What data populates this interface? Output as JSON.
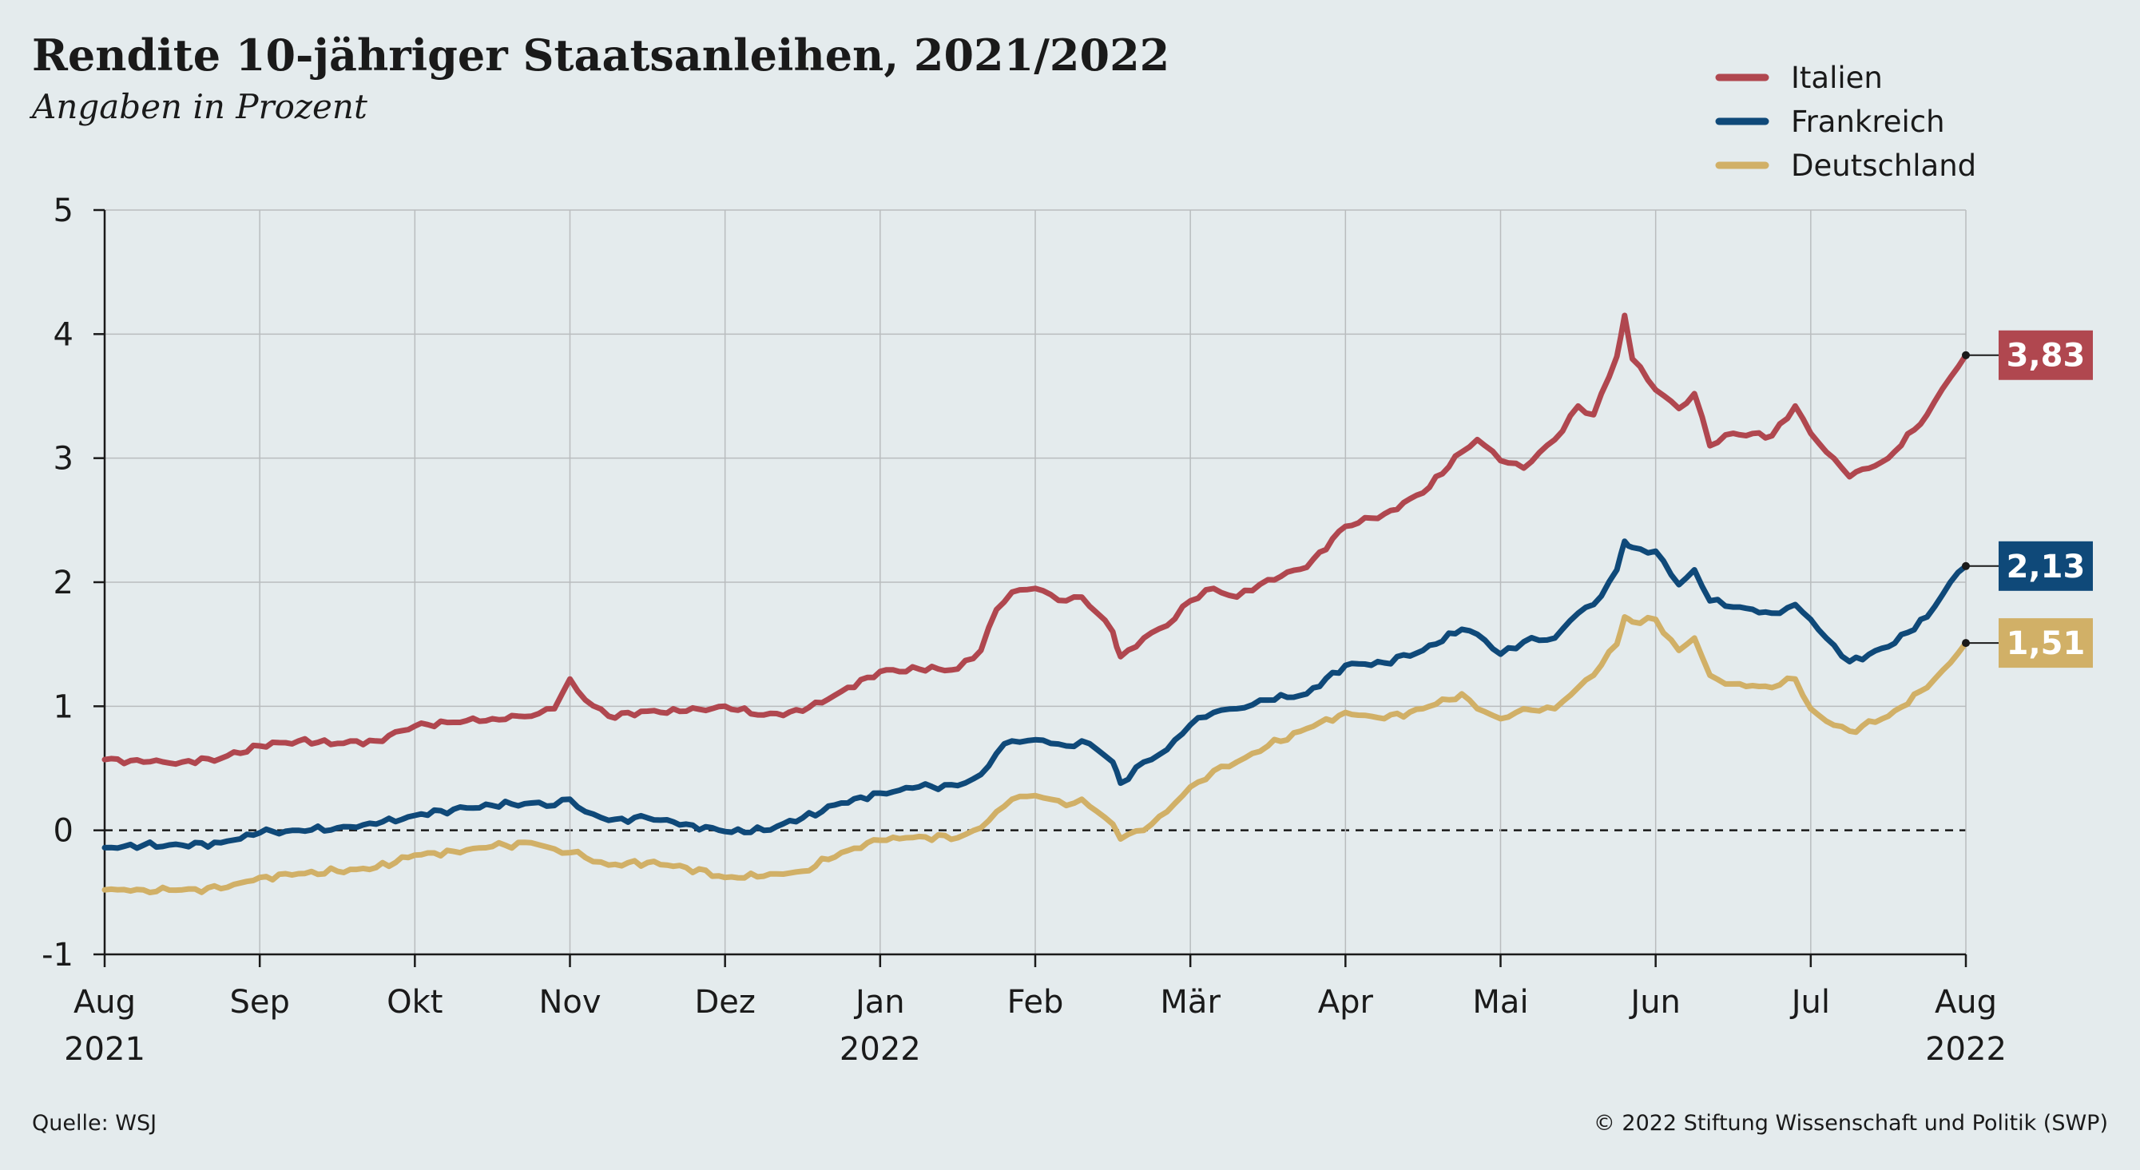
{
  "chart_data": {
    "type": "line",
    "title": "Rendite 10-jähriger Staatsanleihen, 2021/2022",
    "subtitle": "Angaben in Prozent",
    "source": "Quelle: WSJ",
    "copyright": "© 2022 Stiftung Wissenschaft und Politik (SWP)",
    "ylim": [
      -1,
      5
    ],
    "y_ticks": [
      "5",
      "4",
      "3",
      "2",
      "1",
      "0",
      "-1"
    ],
    "y_tick_values": [
      5,
      4,
      3,
      2,
      1,
      0,
      -1
    ],
    "x_ticks": [
      {
        "label": "Aug",
        "year": "2021",
        "month": 0
      },
      {
        "label": "Sep",
        "year": "",
        "month": 1
      },
      {
        "label": "Okt",
        "year": "",
        "month": 2
      },
      {
        "label": "Nov",
        "year": "",
        "month": 3
      },
      {
        "label": "Dez",
        "year": "",
        "month": 4
      },
      {
        "label": "Jan",
        "year": "2022",
        "month": 5
      },
      {
        "label": "Feb",
        "year": "",
        "month": 6
      },
      {
        "label": "Mär",
        "year": "",
        "month": 7
      },
      {
        "label": "Apr",
        "year": "",
        "month": 8
      },
      {
        "label": "Mai",
        "year": "",
        "month": 9
      },
      {
        "label": "Jun",
        "year": "",
        "month": 10
      },
      {
        "label": "Jul",
        "year": "",
        "month": 11
      },
      {
        "label": "Aug",
        "year": "2022",
        "month": 12
      }
    ],
    "x_unit": "months since Aug 2021",
    "grid": true,
    "zero_line": "dashed",
    "legend_position": "top-right",
    "series": [
      {
        "name": "Italien",
        "color": "#b0474f",
        "end_label": "3,83",
        "points": [
          [
            0,
            0.57
          ],
          [
            0.25,
            0.55
          ],
          [
            0.5,
            0.55
          ],
          [
            0.75,
            0.58
          ],
          [
            1.0,
            0.68
          ],
          [
            1.25,
            0.72
          ],
          [
            1.5,
            0.7
          ],
          [
            1.75,
            0.72
          ],
          [
            2.0,
            0.84
          ],
          [
            2.25,
            0.87
          ],
          [
            2.5,
            0.9
          ],
          [
            2.75,
            0.92
          ],
          [
            2.9,
            0.98
          ],
          [
            3.0,
            1.22
          ],
          [
            3.1,
            1.05
          ],
          [
            3.25,
            0.92
          ],
          [
            3.5,
            0.96
          ],
          [
            3.75,
            0.96
          ],
          [
            4.0,
            1.0
          ],
          [
            4.25,
            0.93
          ],
          [
            4.5,
            0.96
          ],
          [
            4.75,
            1.12
          ],
          [
            5.0,
            1.28
          ],
          [
            5.25,
            1.3
          ],
          [
            5.5,
            1.3
          ],
          [
            5.65,
            1.45
          ],
          [
            5.75,
            1.78
          ],
          [
            5.85,
            1.92
          ],
          [
            6.0,
            1.95
          ],
          [
            6.1,
            1.9
          ],
          [
            6.2,
            1.85
          ],
          [
            6.3,
            1.88
          ],
          [
            6.4,
            1.75
          ],
          [
            6.5,
            1.6
          ],
          [
            6.55,
            1.4
          ],
          [
            6.7,
            1.55
          ],
          [
            6.85,
            1.65
          ],
          [
            7.0,
            1.85
          ],
          [
            7.15,
            1.95
          ],
          [
            7.3,
            1.88
          ],
          [
            7.5,
            2.02
          ],
          [
            7.75,
            2.12
          ],
          [
            8.0,
            2.45
          ],
          [
            8.25,
            2.55
          ],
          [
            8.5,
            2.72
          ],
          [
            8.75,
            3.05
          ],
          [
            8.85,
            3.15
          ],
          [
            9.0,
            2.98
          ],
          [
            9.15,
            2.92
          ],
          [
            9.35,
            3.15
          ],
          [
            9.5,
            3.42
          ],
          [
            9.6,
            3.35
          ],
          [
            9.75,
            3.82
          ],
          [
            9.8,
            4.15
          ],
          [
            9.85,
            3.8
          ],
          [
            10.0,
            3.55
          ],
          [
            10.15,
            3.4
          ],
          [
            10.25,
            3.52
          ],
          [
            10.35,
            3.1
          ],
          [
            10.5,
            3.2
          ],
          [
            10.75,
            3.18
          ],
          [
            10.9,
            3.42
          ],
          [
            11.0,
            3.2
          ],
          [
            11.1,
            3.05
          ],
          [
            11.25,
            2.85
          ],
          [
            11.5,
            3.0
          ],
          [
            11.75,
            3.35
          ],
          [
            11.9,
            3.65
          ],
          [
            12.0,
            3.83
          ]
        ]
      },
      {
        "name": "Frankreich",
        "color": "#0f4979",
        "end_label": "2,13",
        "points": [
          [
            0,
            -0.14
          ],
          [
            0.25,
            -0.12
          ],
          [
            0.5,
            -0.12
          ],
          [
            0.75,
            -0.1
          ],
          [
            1.0,
            -0.02
          ],
          [
            1.25,
            0.0
          ],
          [
            1.5,
            0.02
          ],
          [
            1.75,
            0.05
          ],
          [
            2.0,
            0.12
          ],
          [
            2.25,
            0.17
          ],
          [
            2.5,
            0.2
          ],
          [
            2.75,
            0.22
          ],
          [
            2.9,
            0.2
          ],
          [
            3.0,
            0.25
          ],
          [
            3.1,
            0.15
          ],
          [
            3.25,
            0.08
          ],
          [
            3.5,
            0.1
          ],
          [
            3.75,
            0.05
          ],
          [
            4.0,
            -0.01
          ],
          [
            4.25,
            0.0
          ],
          [
            4.5,
            0.1
          ],
          [
            4.75,
            0.22
          ],
          [
            5.0,
            0.3
          ],
          [
            5.25,
            0.35
          ],
          [
            5.5,
            0.36
          ],
          [
            5.65,
            0.45
          ],
          [
            5.75,
            0.62
          ],
          [
            5.85,
            0.72
          ],
          [
            6.0,
            0.73
          ],
          [
            6.1,
            0.7
          ],
          [
            6.2,
            0.68
          ],
          [
            6.3,
            0.72
          ],
          [
            6.4,
            0.65
          ],
          [
            6.5,
            0.55
          ],
          [
            6.55,
            0.38
          ],
          [
            6.7,
            0.55
          ],
          [
            6.85,
            0.65
          ],
          [
            7.0,
            0.85
          ],
          [
            7.15,
            0.95
          ],
          [
            7.3,
            0.98
          ],
          [
            7.5,
            1.05
          ],
          [
            7.75,
            1.1
          ],
          [
            8.0,
            1.33
          ],
          [
            8.25,
            1.35
          ],
          [
            8.5,
            1.45
          ],
          [
            8.75,
            1.62
          ],
          [
            8.85,
            1.58
          ],
          [
            9.0,
            1.42
          ],
          [
            9.15,
            1.52
          ],
          [
            9.35,
            1.55
          ],
          [
            9.5,
            1.75
          ],
          [
            9.6,
            1.82
          ],
          [
            9.75,
            2.1
          ],
          [
            9.8,
            2.33
          ],
          [
            9.85,
            2.28
          ],
          [
            10.0,
            2.25
          ],
          [
            10.15,
            1.98
          ],
          [
            10.25,
            2.1
          ],
          [
            10.35,
            1.85
          ],
          [
            10.5,
            1.8
          ],
          [
            10.75,
            1.75
          ],
          [
            10.9,
            1.82
          ],
          [
            11.0,
            1.7
          ],
          [
            11.1,
            1.55
          ],
          [
            11.25,
            1.36
          ],
          [
            11.5,
            1.48
          ],
          [
            11.75,
            1.72
          ],
          [
            11.9,
            2.0
          ],
          [
            12.0,
            2.13
          ]
        ]
      },
      {
        "name": "Deutschland",
        "color": "#d1b067",
        "end_label": "1,51",
        "points": [
          [
            0,
            -0.48
          ],
          [
            0.25,
            -0.48
          ],
          [
            0.5,
            -0.48
          ],
          [
            0.75,
            -0.47
          ],
          [
            1.0,
            -0.38
          ],
          [
            1.25,
            -0.35
          ],
          [
            1.5,
            -0.33
          ],
          [
            1.75,
            -0.3
          ],
          [
            2.0,
            -0.2
          ],
          [
            2.25,
            -0.17
          ],
          [
            2.5,
            -0.13
          ],
          [
            2.75,
            -0.1
          ],
          [
            2.9,
            -0.15
          ],
          [
            3.0,
            -0.18
          ],
          [
            3.1,
            -0.22
          ],
          [
            3.25,
            -0.28
          ],
          [
            3.5,
            -0.26
          ],
          [
            3.75,
            -0.3
          ],
          [
            4.0,
            -0.38
          ],
          [
            4.25,
            -0.37
          ],
          [
            4.5,
            -0.33
          ],
          [
            4.75,
            -0.18
          ],
          [
            5.0,
            -0.08
          ],
          [
            5.25,
            -0.05
          ],
          [
            5.5,
            -0.06
          ],
          [
            5.65,
            0.02
          ],
          [
            5.75,
            0.15
          ],
          [
            5.85,
            0.25
          ],
          [
            6.0,
            0.28
          ],
          [
            6.1,
            0.25
          ],
          [
            6.2,
            0.2
          ],
          [
            6.3,
            0.25
          ],
          [
            6.4,
            0.15
          ],
          [
            6.5,
            0.05
          ],
          [
            6.55,
            -0.07
          ],
          [
            6.7,
            0.0
          ],
          [
            6.85,
            0.15
          ],
          [
            7.0,
            0.35
          ],
          [
            7.15,
            0.48
          ],
          [
            7.3,
            0.55
          ],
          [
            7.5,
            0.68
          ],
          [
            7.75,
            0.82
          ],
          [
            8.0,
            0.95
          ],
          [
            8.25,
            0.9
          ],
          [
            8.5,
            0.98
          ],
          [
            8.75,
            1.1
          ],
          [
            8.85,
            0.98
          ],
          [
            9.0,
            0.9
          ],
          [
            9.15,
            0.98
          ],
          [
            9.35,
            0.98
          ],
          [
            9.5,
            1.15
          ],
          [
            9.6,
            1.25
          ],
          [
            9.75,
            1.5
          ],
          [
            9.8,
            1.72
          ],
          [
            9.85,
            1.68
          ],
          [
            10.0,
            1.7
          ],
          [
            10.15,
            1.45
          ],
          [
            10.25,
            1.55
          ],
          [
            10.35,
            1.25
          ],
          [
            10.5,
            1.18
          ],
          [
            10.75,
            1.15
          ],
          [
            10.9,
            1.22
          ],
          [
            11.0,
            0.98
          ],
          [
            11.1,
            0.88
          ],
          [
            11.25,
            0.8
          ],
          [
            11.5,
            0.92
          ],
          [
            11.75,
            1.15
          ],
          [
            11.9,
            1.35
          ],
          [
            12.0,
            1.51
          ]
        ]
      }
    ]
  }
}
